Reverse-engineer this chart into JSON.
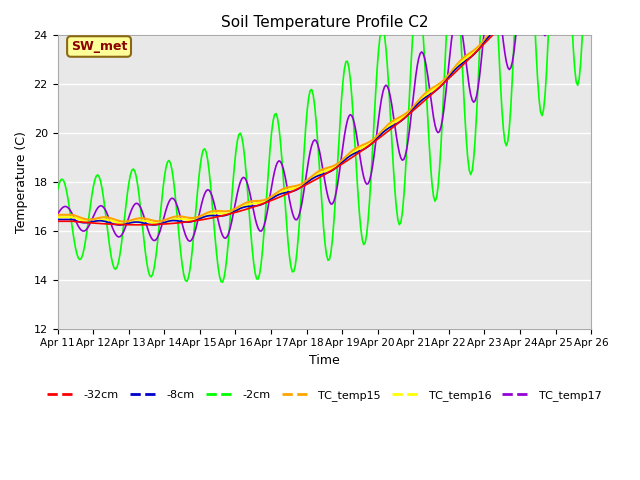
{
  "title": "Soil Temperature Profile C2",
  "xlabel": "Time",
  "ylabel": "Temperature (C)",
  "ylim": [
    12,
    24
  ],
  "yticks": [
    12,
    14,
    16,
    18,
    20,
    22,
    24
  ],
  "xlim": [
    0,
    15
  ],
  "annotation": "SW_met",
  "bg_color": "#e8e8e8",
  "xtick_labels": [
    "Apr 11",
    "Apr 12",
    "Apr 13",
    "Apr 14",
    "Apr 15",
    "Apr 16",
    "Apr 17",
    "Apr 18",
    "Apr 19",
    "Apr 20",
    "Apr 21",
    "Apr 22",
    "Apr 23",
    "Apr 24",
    "Apr 25",
    "Apr 26"
  ],
  "xtick_positions": [
    0,
    1,
    2,
    3,
    4,
    5,
    6,
    7,
    8,
    9,
    10,
    11,
    12,
    13,
    14,
    15
  ],
  "series_colors": {
    "neg32cm": "#ff0000",
    "neg8cm": "#0000cd",
    "neg2cm": "#00ff00",
    "TC_temp15": "#ffa500",
    "TC_temp16": "#ffff00",
    "TC_temp17": "#9400d3"
  },
  "series_labels": {
    "neg32cm": "-32cm",
    "neg8cm": "-8cm",
    "neg2cm": "-2cm",
    "TC_temp15": "TC_temp15",
    "TC_temp16": "TC_temp16",
    "TC_temp17": "TC_temp17"
  }
}
